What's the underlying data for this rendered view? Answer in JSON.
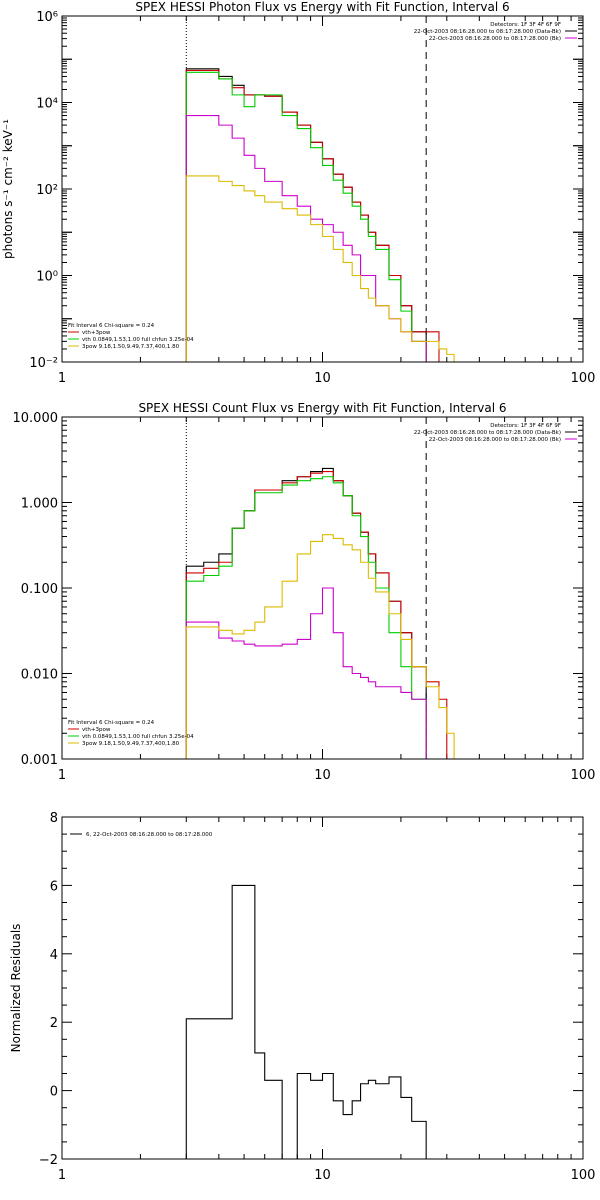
{
  "chart_data": [
    {
      "type": "line",
      "step": true,
      "title": "SPEX HESSI Photon Flux vs Energy with Fit Function, Interval 6",
      "ylabel": "photons s⁻¹ cm⁻² keV⁻¹",
      "xlabel": "",
      "xscale": "log",
      "yscale": "log",
      "xlim": [
        1,
        100
      ],
      "ylim": [
        0.01,
        1000000
      ],
      "x_tick_labels": [
        {
          "value": 1,
          "label": "1"
        },
        {
          "value": 10,
          "label": "10"
        },
        {
          "value": 100,
          "label": "100"
        }
      ],
      "y_tick_labels": [
        {
          "value": 1000000,
          "label": "10⁶"
        },
        {
          "value": 10000,
          "label": "10⁴"
        },
        {
          "value": 100,
          "label": "10²"
        },
        {
          "value": 1,
          "label": "10⁰"
        },
        {
          "value": 0.01,
          "label": "10⁻²"
        }
      ],
      "vlines": [
        {
          "x": 3,
          "style": "dotted",
          "color": "#000000"
        },
        {
          "x": 25,
          "style": "dashed",
          "color": "#000000"
        }
      ],
      "legend_top_right": {
        "lines": [
          "Detectors: 1F 3F 4F 6F 9F",
          "22-Oct-2003 08:16:28.000 to 08:17:28.000 (Data-Bk)",
          "22-Oct-2003 08:16:28.000 to 08:17:28.000 (Bk)"
        ],
        "colors": [
          "",
          "#000000",
          "#cc00cc"
        ]
      },
      "legend_bottom_left": {
        "lines": [
          "Fit Interval 6   Chi-square = 0.24",
          "vth+3pow",
          "vth 0.0849,1.53,1.00  full chfun 3.25e-04",
          "3pow 9.18,1.50,9.49,7.37,400,1.80"
        ],
        "colors": [
          "",
          "#cc0000",
          "#00cc00",
          "#ddbb00"
        ]
      },
      "series": [
        {
          "color": "#000000",
          "edges": [
            3,
            3.5,
            4,
            4.5,
            5,
            5.5,
            6,
            7,
            8,
            9,
            10,
            11,
            12,
            13,
            14,
            15,
            16,
            18,
            20,
            22,
            25
          ],
          "values": [
            60000,
            60000,
            40000,
            25000,
            15000,
            15000,
            14000,
            6000,
            3000,
            1200,
            500,
            220,
            110,
            50,
            25,
            10,
            5,
            1,
            0.2,
            0.05
          ]
        },
        {
          "color": "#cc0000",
          "edges": [
            3,
            3.5,
            4,
            4.5,
            5,
            5.5,
            6,
            7,
            8,
            9,
            10,
            11,
            12,
            13,
            14,
            15,
            16,
            18,
            20,
            22,
            25,
            28
          ],
          "values": [
            55000,
            55000,
            35000,
            22000,
            15000,
            15000,
            14000,
            6000,
            3000,
            1200,
            500,
            220,
            110,
            50,
            25,
            10,
            5,
            1,
            0.2,
            0.05,
            0.05
          ]
        },
        {
          "color": "#00cc00",
          "edges": [
            3,
            3.5,
            4,
            4.5,
            5,
            5.5,
            6,
            7,
            8,
            9,
            10,
            11,
            12,
            13,
            14,
            15,
            16,
            18,
            20,
            22,
            25
          ],
          "values": [
            50000,
            50000,
            35000,
            15000,
            8000,
            15000,
            15000,
            5000,
            2500,
            900,
            350,
            160,
            80,
            40,
            20,
            8,
            4,
            0.8,
            0.15,
            0.03
          ]
        },
        {
          "color": "#cc00cc",
          "edges": [
            3,
            4,
            4.5,
            5,
            5.5,
            6,
            7,
            8,
            9,
            10,
            11,
            12,
            13,
            14,
            16,
            18,
            20,
            22,
            25
          ],
          "values": [
            5000,
            3000,
            1500,
            600,
            300,
            150,
            70,
            40,
            20,
            15,
            10,
            5,
            3,
            1,
            0.2,
            0.1,
            0.05,
            0.03
          ]
        },
        {
          "color": "#ddbb00",
          "edges": [
            3,
            3.5,
            4,
            4.5,
            5,
            5.5,
            6,
            7,
            8,
            9,
            10,
            11,
            12,
            13,
            14,
            15,
            16,
            18,
            20,
            22,
            25,
            28,
            30,
            32
          ],
          "values": [
            200,
            200,
            150,
            120,
            90,
            70,
            50,
            35,
            25,
            15,
            8,
            4,
            2,
            1,
            0.5,
            0.3,
            0.2,
            0.1,
            0.05,
            0.03,
            0.03,
            0.02,
            0.015
          ]
        }
      ]
    },
    {
      "type": "line",
      "step": true,
      "title": "SPEX HESSI Count Flux vs Energy with Fit Function, Interval 6",
      "ylabel": "",
      "xlabel": "",
      "xscale": "log",
      "yscale": "log",
      "xlim": [
        1,
        100
      ],
      "ylim": [
        0.001,
        10
      ],
      "x_tick_labels": [
        {
          "value": 1,
          "label": "1"
        },
        {
          "value": 10,
          "label": "10"
        },
        {
          "value": 100,
          "label": "100"
        }
      ],
      "y_tick_labels": [
        {
          "value": 10,
          "label": "10.000"
        },
        {
          "value": 1,
          "label": "1.000"
        },
        {
          "value": 0.1,
          "label": "0.100"
        },
        {
          "value": 0.01,
          "label": "0.010"
        },
        {
          "value": 0.001,
          "label": "0.001"
        }
      ],
      "vlines": [
        {
          "x": 3,
          "style": "dotted",
          "color": "#000000"
        },
        {
          "x": 25,
          "style": "dashed",
          "color": "#000000"
        }
      ],
      "legend_top_right": {
        "lines": [
          "Detectors: 1F 3F 4F 6F 9F",
          "22-Oct-2003 08:16:28.000 to 08:17:28.000 (Data-Bk)",
          "22-Oct-2003 08:16:28.000 to 08:17:28.000 (Bk)"
        ],
        "colors": [
          "",
          "#000000",
          "#cc00cc"
        ]
      },
      "legend_bottom_left": {
        "lines": [
          "Fit Interval 6   Chi-square = 0.24",
          "vth+3pow",
          "vth 0.0849,1.53,1.00  full chfun 3.25e-04",
          "3pow 9.18,1.50,9.49,7.37,400,1.80"
        ],
        "colors": [
          "",
          "#cc0000",
          "#00cc00",
          "#ddbb00"
        ]
      },
      "series": [
        {
          "color": "#000000",
          "edges": [
            3,
            3.5,
            4,
            4.5,
            5,
            5.5,
            6,
            7,
            8,
            9,
            10,
            11,
            12,
            13,
            14,
            15,
            16,
            18,
            20,
            22,
            25
          ],
          "values": [
            0.18,
            0.2,
            0.25,
            0.5,
            0.8,
            1.4,
            1.4,
            1.8,
            2,
            2.3,
            2.5,
            1.8,
            1.2,
            0.75,
            0.45,
            0.25,
            0.15,
            0.07,
            0.03,
            0.012
          ]
        },
        {
          "color": "#cc0000",
          "edges": [
            3,
            3.5,
            4,
            4.5,
            5,
            5.5,
            6,
            7,
            8,
            9,
            10,
            11,
            12,
            13,
            14,
            15,
            16,
            18,
            20,
            22,
            25,
            28,
            30
          ],
          "values": [
            0.15,
            0.17,
            0.2,
            0.5,
            0.8,
            1.4,
            1.4,
            1.7,
            2,
            2.2,
            2.3,
            1.8,
            1.2,
            0.75,
            0.45,
            0.25,
            0.15,
            0.07,
            0.03,
            0.012,
            0.008,
            0.005
          ]
        },
        {
          "color": "#00cc00",
          "edges": [
            3,
            3.5,
            4,
            4.5,
            5,
            5.5,
            6,
            7,
            8,
            9,
            10,
            11,
            12,
            13,
            14,
            15,
            16,
            18,
            20,
            22,
            25
          ],
          "values": [
            0.12,
            0.14,
            0.18,
            0.5,
            0.8,
            1.3,
            1.3,
            1.6,
            1.8,
            1.9,
            2,
            1.7,
            1.2,
            0.7,
            0.4,
            0.2,
            0.1,
            0.03,
            0.012,
            0.005
          ]
        },
        {
          "color": "#cc00cc",
          "edges": [
            3,
            4,
            4.5,
            5,
            5.5,
            6,
            7,
            8,
            9,
            10,
            11,
            12,
            13,
            14,
            15,
            16,
            18,
            20,
            22,
            25
          ],
          "values": [
            0.04,
            0.026,
            0.024,
            0.022,
            0.021,
            0.021,
            0.022,
            0.025,
            0.05,
            0.1,
            0.03,
            0.012,
            0.01,
            0.009,
            0.008,
            0.007,
            0.007,
            0.006,
            0.005
          ]
        },
        {
          "color": "#ddbb00",
          "edges": [
            3,
            3.5,
            4,
            4.5,
            5,
            5.5,
            6,
            7,
            8,
            9,
            10,
            11,
            12,
            13,
            14,
            15,
            16,
            18,
            20,
            22,
            25,
            28,
            30,
            32,
            34
          ],
          "values": [
            0.035,
            0.035,
            0.032,
            0.029,
            0.032,
            0.04,
            0.06,
            0.12,
            0.25,
            0.35,
            0.42,
            0.38,
            0.32,
            0.28,
            0.2,
            0.13,
            0.09,
            0.05,
            0.025,
            0.012,
            0.007,
            0.004,
            0.002,
            0.001
          ]
        }
      ]
    },
    {
      "type": "line",
      "step": true,
      "title": "",
      "ylabel": "Normalized Residuals",
      "xlabel": "",
      "xscale": "log",
      "yscale": "linear",
      "xlim": [
        1,
        100
      ],
      "ylim": [
        -2,
        8
      ],
      "x_tick_labels": [
        {
          "value": 1,
          "label": "1"
        },
        {
          "value": 10,
          "label": "10"
        },
        {
          "value": 100,
          "label": "100"
        }
      ],
      "y_tick_labels": [
        {
          "value": 8,
          "label": "8"
        },
        {
          "value": 6,
          "label": "6"
        },
        {
          "value": 4,
          "label": "4"
        },
        {
          "value": 2,
          "label": "2"
        },
        {
          "value": 0,
          "label": "0"
        },
        {
          "value": -2,
          "label": "−2"
        }
      ],
      "legend": {
        "text": "6, 22-Oct-2003 08:16:28.000 to 08:17:28.000",
        "color": "#000000"
      },
      "series": [
        {
          "color": "#000000",
          "edges": [
            3,
            4,
            4.5,
            5,
            5.5,
            6,
            7,
            8,
            9,
            10,
            11,
            12,
            13,
            14,
            15,
            16,
            18,
            20,
            22,
            25
          ],
          "values": [
            2.1,
            2.1,
            6,
            6,
            1.1,
            0.3,
            -2,
            0.5,
            0.3,
            0.5,
            -0.3,
            -0.7,
            -0.3,
            0.2,
            0.3,
            0.2,
            0.4,
            -0.2,
            -0.9
          ]
        }
      ]
    }
  ]
}
